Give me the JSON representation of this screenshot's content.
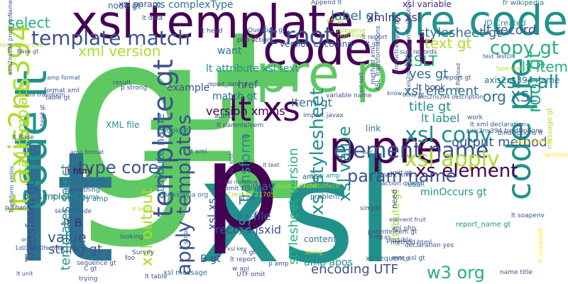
{
  "colors": {
    "background": "#ffffff",
    "palette": [
      "#440154",
      "#472c7a",
      "#3b528b",
      "#2c728e",
      "#21918c",
      "#28ae80",
      "#5ec962",
      "#addc30",
      "#fde725"
    ]
  },
  "words": [
    {
      "text": "gt",
      "color": "#5ec962",
      "vertical": false
    },
    {
      "text": "lt",
      "color": "#2c728e",
      "vertical": false
    },
    {
      "text": "xsl",
      "color": "#21918c",
      "vertical": false
    },
    {
      "text": "p",
      "color": "#440154",
      "vertical": false
    },
    {
      "text": "lt",
      "color": "#5ec962",
      "vertical": true
    },
    {
      "text": "xsl template",
      "color": "#440154",
      "vertical": false
    },
    {
      "text": "pre code",
      "color": "#21918c",
      "vertical": false
    },
    {
      "text": "code gt",
      "color": "#440154",
      "vertical": false
    },
    {
      "text": "pre p",
      "color": "#5ec962",
      "vertical": false
    },
    {
      "text": "p pre",
      "color": "#440154",
      "vertical": false
    },
    {
      "text": "code lt",
      "color": "#21918c",
      "vertical": true
    },
    {
      "text": "code pre",
      "color": "#21918c",
      "vertical": true
    },
    {
      "text": "lt axis2ns394",
      "color": "#addc30",
      "vertical": true
    },
    {
      "text": "template gt",
      "color": "#3b528b",
      "vertical": true
    },
    {
      "text": "lt xs",
      "color": "#440154",
      "vertical": false
    },
    {
      "text": "template match",
      "color": "#3b528b",
      "vertical": false
    },
    {
      "text": "lt root",
      "color": "#3b528b",
      "vertical": false
    },
    {
      "text": "element name",
      "color": "#3b528b",
      "vertical": false
    },
    {
      "text": "xsl copy",
      "color": "#21918c",
      "vertical": false
    },
    {
      "text": "xsl apply",
      "color": "#addc30",
      "vertical": false
    },
    {
      "text": "xs element",
      "color": "#440154",
      "vertical": false
    },
    {
      "text": "param name",
      "color": "#3b528b",
      "vertical": false
    },
    {
      "text": "apply templates",
      "color": "#3b528b",
      "vertical": true
    },
    {
      "text": "xsl output",
      "color": "#addc30",
      "vertical": true
    },
    {
      "text": "w3 org",
      "color": "#28ae80",
      "vertical": false
    },
    {
      "text": "copy gt",
      "color": "#28ae80",
      "vertical": false
    },
    {
      "text": "root gt",
      "color": "#28ae80",
      "vertical": true
    },
    {
      "text": "lt record",
      "color": "#3b528b",
      "vertical": false
    },
    {
      "text": "type core",
      "color": "#3b528b",
      "vertical": false
    },
    {
      "text": "xml version",
      "color": "#addc30",
      "vertical": false
    },
    {
      "text": "xsl call",
      "color": "#21918c",
      "vertical": false
    },
    {
      "text": "XSLT",
      "color": "#28ae80",
      "vertical": false
    },
    {
      "text": "text gt",
      "color": "#addc30",
      "vertical": false
    },
    {
      "text": "lt Item",
      "color": "#28ae80",
      "vertical": false
    },
    {
      "text": "yes gt",
      "color": "#2c728e",
      "vertical": false
    },
    {
      "text": "stylesheet gt",
      "color": "#2c728e",
      "vertical": false
    },
    {
      "text": "label gt",
      "color": "#2c728e",
      "vertical": false
    },
    {
      "text": "xsl element",
      "color": "#2c728e",
      "vertical": false
    },
    {
      "text": "org XSL",
      "color": "#2c728e",
      "vertical": false
    },
    {
      "text": "title gt",
      "color": "#21918c",
      "vertical": false
    },
    {
      "text": "lt label",
      "color": "#21918c",
      "vertical": false
    },
    {
      "text": "output method",
      "color": "#3b528b",
      "vertical": false
    },
    {
      "text": "record jsxid",
      "color": "#3b528b",
      "vertical": false
    },
    {
      "text": "value",
      "color": "#3b528b",
      "vertical": false
    },
    {
      "text": "string gt",
      "color": "#3b528b",
      "vertical": false
    },
    {
      "text": "encoding UTF",
      "color": "#3b528b",
      "vertical": false
    },
    {
      "text": "xsl stylesheet",
      "color": "#21918c",
      "vertical": true
    },
    {
      "text": "xsl value",
      "color": "#21918c",
      "vertical": true
    },
    {
      "text": "XSL Transform",
      "color": "#21918c",
      "vertical": true
    },
    {
      "text": "stylesheet version",
      "color": "#28ae80",
      "vertical": true
    },
    {
      "text": "call template",
      "color": "#addc30",
      "vertical": true
    },
    {
      "text": "Transform gt",
      "color": "#3b528b",
      "vertical": true
    },
    {
      "text": "attribute name",
      "color": "#2c728e",
      "vertical": true
    },
    {
      "text": "xsl xs",
      "color": "#3b528b",
      "vertical": true
    },
    {
      "text": "xs simpleType",
      "color": "#2c728e",
      "vertical": false
    },
    {
      "text": "node gt",
      "color": "#2c728e",
      "vertical": false
    },
    {
      "text": "xsl param",
      "color": "#3b528b",
      "vertical": false
    },
    {
      "text": "select",
      "color": "#28ae80",
      "vertical": false
    },
    {
      "text": "xs complexType",
      "color": "#2c728e",
      "vertical": false
    },
    {
      "text": "lt attribute xsl text",
      "color": "#21918c",
      "vertical": false
    },
    {
      "text": "version xmlns",
      "color": "#440154",
      "vertical": false
    },
    {
      "text": "match gt",
      "color": "#2c728e",
      "vertical": false
    },
    {
      "text": "XML file",
      "color": "#21918c",
      "vertical": false
    },
    {
      "text": "lt html",
      "color": "#440154",
      "vertical": false
    },
    {
      "text": "lt B",
      "color": "#472c7a",
      "vertical": false
    },
    {
      "text": "example",
      "color": "#3b528b",
      "vertical": false
    },
    {
      "text": "href",
      "color": "#3b528b",
      "vertical": false
    },
    {
      "text": "want",
      "color": "#2c728e",
      "vertical": false
    },
    {
      "text": "way",
      "color": "#2c728e",
      "vertical": false
    },
    {
      "text": "file",
      "color": "#3b528b",
      "vertical": false
    },
    {
      "text": "Item gt",
      "color": "#2c728e",
      "vertical": false
    },
    {
      "text": "xsl variable",
      "color": "#472c7a",
      "vertical": false
    },
    {
      "text": "ID Created",
      "color": "#21918c",
      "vertical": false
    },
    {
      "text": "axis2ns394 name",
      "color": "#2c728e",
      "vertical": false
    },
    {
      "text": "xmlns xsl",
      "color": "#472c7a",
      "vertical": false
    },
    {
      "text": "lt head",
      "color": "#3b528b",
      "vertical": false
    },
    {
      "text": "version encoding",
      "color": "#3b528b",
      "vertical": false
    },
    {
      "text": "templates select",
      "color": "#21918c",
      "vertical": true
    },
    {
      "text": "attribute gt",
      "color": "#addc30",
      "vertical": true
    },
    {
      "text": "book gt",
      "color": "#2c728e",
      "vertical": false
    },
    {
      "text": "B gt",
      "color": "#3b528b",
      "vertical": false
    },
    {
      "text": "lt book",
      "color": "#3b528b",
      "vertical": false
    },
    {
      "text": "xs sequence",
      "color": "#2c728e",
      "vertical": false
    },
    {
      "text": "minOccurs gt",
      "color": "#21918c",
      "vertical": false
    },
    {
      "text": "amp apos",
      "color": "#21918c",
      "vertical": false
    },
    {
      "text": "content",
      "color": "#2c728e",
      "vertical": false
    },
    {
      "text": "link",
      "color": "#2c728e",
      "vertical": false
    },
    {
      "text": "amp",
      "color": "#3b528b",
      "vertical": false
    },
    {
      "text": "xsl message",
      "color": "#2c728e",
      "vertical": false
    },
    {
      "text": "query amp",
      "color": "#2c728e",
      "vertical": false
    },
    {
      "text": "fr wikipedia",
      "color": "#2c728e",
      "vertical": false
    },
    {
      "text": "lt data",
      "color": "#3b528b",
      "vertical": false
    },
    {
      "text": "Append lt",
      "color": "#3b528b",
      "vertical": false
    },
    {
      "text": "php action",
      "color": "#472c7a",
      "vertical": false
    },
    {
      "text": "Question gt",
      "color": "#3b528b",
      "vertical": false
    },
    {
      "text": "lt Set",
      "color": "#2c728e",
      "vertical": false
    },
    {
      "text": "problem",
      "color": "#2c728e",
      "vertical": false
    },
    {
      "text": "simple",
      "color": "#3b528b",
      "vertical": false
    },
    {
      "text": "bar",
      "color": "#2c728e",
      "vertical": false
    },
    {
      "text": "unit gt",
      "color": "#3b528b",
      "vertical": false
    },
    {
      "text": "javax xml",
      "color": "#3b528b",
      "vertical": false
    },
    {
      "text": "action query",
      "color": "#3b528b",
      "vertical": false
    },
    {
      "text": "USER",
      "color": "#2c728e",
      "vertical": false
    },
    {
      "text": "method html",
      "color": "#3b528b",
      "vertical": false
    },
    {
      "text": "mm_xsl gt",
      "color": "#3b528b",
      "vertical": false
    },
    {
      "text": "lt report_name",
      "color": "#21918c",
      "vertical": false
    },
    {
      "text": "report_name gt",
      "color": "#21918c",
      "vertical": false
    },
    {
      "text": "amp amp",
      "color": "#21918c",
      "vertical": false
    },
    {
      "text": "wikipedia org",
      "color": "#2c728e",
      "vertical": false
    },
    {
      "text": "select node",
      "color": "#3b528b",
      "vertical": false
    },
    {
      "text": "something",
      "color": "#3b528b",
      "vertical": false
    },
    {
      "text": "format xml",
      "color": "#3b528b",
      "vertical": false
    },
    {
      "text": "table gt",
      "color": "#3b528b",
      "vertical": false
    },
    {
      "text": "p strong",
      "color": "#3b528b",
      "vertical": false
    },
    {
      "text": "result",
      "color": "#3b528b",
      "vertical": false
    },
    {
      "text": "report_date gt",
      "color": "#3b528b",
      "vertical": false
    },
    {
      "text": "sub records",
      "color": "#3b528b",
      "vertical": false
    },
    {
      "text": "test TestOl",
      "color": "#3b528b",
      "vertical": false
    },
    {
      "text": "lt soapenv",
      "color": "#3b528b",
      "vertical": false
    },
    {
      "text": "name title",
      "color": "#3b528b",
      "vertical": false
    },
    {
      "text": "lt report",
      "color": "#3b528b",
      "vertical": false
    },
    {
      "text": "lt ip",
      "color": "#3b528b",
      "vertical": false
    },
    {
      "text": "lt xml",
      "color": "#3b528b",
      "vertical": false
    },
    {
      "text": "work",
      "color": "#3b528b",
      "vertical": false
    },
    {
      "text": "author",
      "color": "#3b528b",
      "vertical": false
    },
    {
      "text": "omit xml",
      "color": "#3b528b",
      "vertical": false
    },
    {
      "text": "lt parenteleem",
      "color": "#3b528b",
      "vertical": false
    },
    {
      "text": "UTF omit",
      "color": "#3b528b",
      "vertical": false
    },
    {
      "text": "lt table",
      "color": "#3b528b",
      "vertical": false
    },
    {
      "text": "trying",
      "color": "#3b528b",
      "vertical": false
    },
    {
      "text": "Survey",
      "color": "#3b528b",
      "vertical": false
    },
    {
      "text": "foo",
      "color": "#3b528b",
      "vertical": false
    },
    {
      "text": "looking",
      "color": "#3b528b",
      "vertical": false
    },
    {
      "text": "C gt",
      "color": "#3b528b",
      "vertical": false
    },
    {
      "text": "sequence gt",
      "color": "#3b528b",
      "vertical": false
    },
    {
      "text": "p Thank",
      "color": "#3b528b",
      "vertical": false
    },
    {
      "text": "lt Base",
      "color": "#3b528b",
      "vertical": false
    },
    {
      "text": "Created 2170S",
      "color": "#addc30",
      "vertical": false
    },
    {
      "text": "need",
      "color": "#3b528b",
      "vertical": true
    },
    {
      "text": "temporary tree",
      "color": "#addc30",
      "vertical": false
    },
    {
      "text": "archive",
      "color": "#fde725",
      "vertical": false
    },
    {
      "text": "message gt",
      "color": "#addc30",
      "vertical": true
    },
    {
      "text": "lt uniqueId",
      "color": "#fde725",
      "vertical": true
    },
    {
      "text": "amp format",
      "color": "#fde725",
      "vertical": false
    },
    {
      "text": "nofollow",
      "color": "#addc30",
      "vertical": false
    },
    {
      "text": "following",
      "color": "#addc30",
      "vertical": false
    },
    {
      "text": "utf gt",
      "color": "#addc30",
      "vertical": false
    },
    {
      "text": "type text",
      "color": "#addc30",
      "vertical": false
    },
    {
      "text": "lt body",
      "color": "#addc30",
      "vertical": false
    },
    {
      "text": "kind",
      "color": "#addc30",
      "vertical": false
    },
    {
      "text": "using",
      "color": "#addc30",
      "vertical": false
    },
    {
      "text": "jsxid 1d0xb0b0fec0",
      "color": "#addc30",
      "vertical": false
    },
    {
      "text": "element fruit",
      "color": "#3b528b",
      "vertical": false
    },
    {
      "text": "api php",
      "color": "#3b528b",
      "vertical": false
    },
    {
      "text": "parenteleem gt",
      "color": "#3b528b",
      "vertical": false
    },
    {
      "text": "possible",
      "color": "#3b528b",
      "vertical": false
    },
    {
      "text": "lt ing",
      "color": "#3b528b",
      "vertical": false
    },
    {
      "text": "lt xs",
      "color": "#3b528b",
      "vertical": false
    },
    {
      "text": "declaration yes",
      "color": "#3b528b",
      "vertical": false
    },
    {
      "text": "lt xml declaration",
      "color": "#3b528b",
      "vertical": false
    },
    {
      "text": "bindOptions lt",
      "color": "#3b528b",
      "vertical": false
    },
    {
      "text": "axis2ns394 bindOptions",
      "color": "#3b528b",
      "vertical": false
    },
    {
      "text": "axis2ns394 description",
      "color": "#3b528b",
      "vertical": false
    },
    {
      "text": "body gt",
      "color": "#3b528b",
      "vertical": false
    },
    {
      "text": "know",
      "color": "#3b528b",
      "vertical": false
    },
    {
      "text": "variable name",
      "color": "#3b528b",
      "vertical": false
    },
    {
      "text": "import javax",
      "color": "#3b528b",
      "vertical": false
    },
    {
      "text": "xsl key",
      "color": "#3b528b",
      "vertical": false
    },
    {
      "text": "p amp",
      "color": "#3b528b",
      "vertical": false
    },
    {
      "text": "n gt",
      "color": "#3b528b",
      "vertical": false
    },
    {
      "text": "w api",
      "color": "#3b528b",
      "vertical": false
    },
    {
      "text": "lt report",
      "color": "#3b528b",
      "vertical": false
    },
    {
      "text": "report gt",
      "color": "#3b528b",
      "vertical": false
    },
    {
      "text": "method xml",
      "color": "#3b528b",
      "vertical": true
    },
    {
      "text": "XSL Transformations",
      "color": "#3b528b",
      "vertical": true
    },
    {
      "text": "productcategory gt",
      "color": "#3b528b",
      "vertical": true
    },
    {
      "text": "axis2ns394 programDescription",
      "color": "#3b528b",
      "vertical": true
    },
    {
      "text": "lt Payload",
      "color": "#3b528b",
      "vertical": true
    },
    {
      "text": "xsl sort",
      "color": "#3b528b",
      "vertical": true
    },
    {
      "text": "Transform xmlns",
      "color": "#3b528b",
      "vertical": true
    },
    {
      "text": "lt script",
      "color": "#3b528b",
      "vertical": true
    },
    {
      "text": "lt Test",
      "color": "#3b528b",
      "vertical": true
    },
    {
      "text": "lt Name",
      "color": "#3b528b",
      "vertical": true
    },
    {
      "text": "amp format",
      "color": "#3b528b",
      "vertical": false
    },
    {
      "text": "1d0xb0b0fec0 ID",
      "color": "#3b528b",
      "vertical": false
    },
    {
      "text": "lt unit",
      "color": "#3b528b",
      "vertical": false
    },
    {
      "text": "org w",
      "color": "#3b528b",
      "vertical": false
    },
    {
      "text": "amp format",
      "color": "#3b528b",
      "vertical": false
    },
    {
      "text": "lt text",
      "color": "#3b528b",
      "vertical": false
    },
    {
      "text": "lt qty",
      "color": "#3b528b",
      "vertical": false
    },
    {
      "text": "api xml",
      "color": "#3b528b",
      "vertical": true
    },
    {
      "text": "rel nofollow",
      "color": "#3b528b",
      "vertical": false
    },
    {
      "text": "ID",
      "color": "#3b528b",
      "vertical": false
    },
    {
      "text": "head gt",
      "color": "#3b528b",
      "vertical": true
    },
    {
      "text": "xml transform",
      "color": "#3b528b",
      "vertical": false
    },
    {
      "text": "Base gt",
      "color": "#3b528b",
      "vertical": false
    },
    {
      "text": "axis2ns394 programName",
      "color": "#3b528b",
      "vertical": true
    }
  ]
}
